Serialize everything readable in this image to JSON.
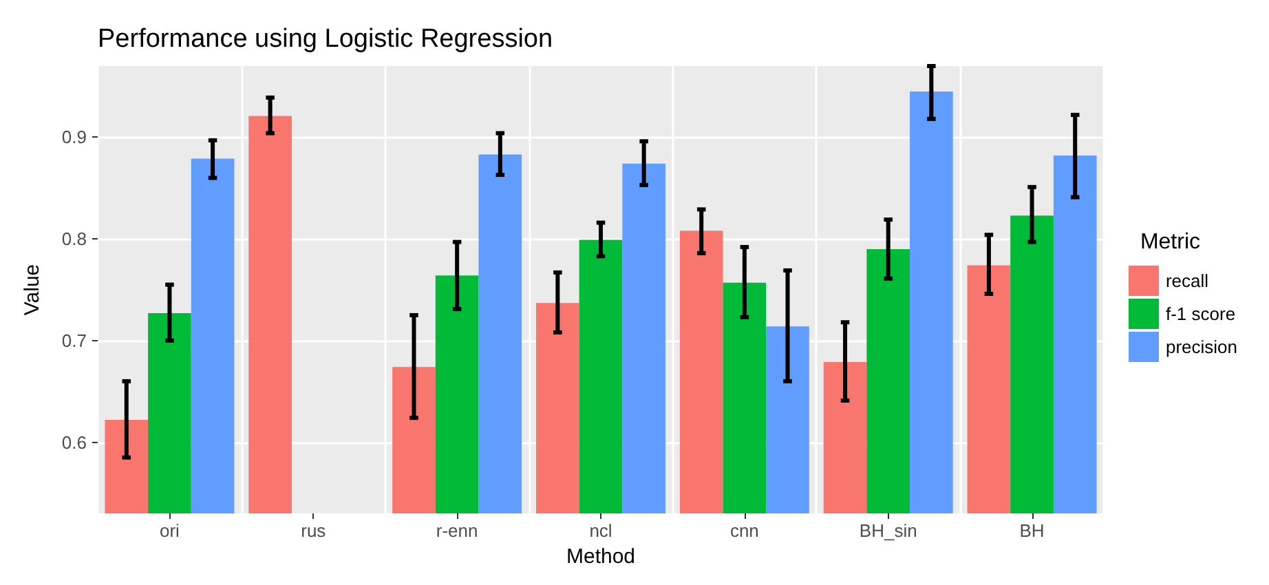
{
  "chart_data": {
    "type": "bar",
    "title": "Performance using Logistic Regression",
    "xlabel": "Method",
    "ylabel": "Value",
    "legend_title": "Metric",
    "categories": [
      "ori",
      "rus",
      "r-enn",
      "ncl",
      "cnn",
      "BH_sin",
      "BH"
    ],
    "series": [
      {
        "name": "recall",
        "color": "#f8766d",
        "values": [
          0.622,
          0.921,
          0.674,
          0.737,
          0.808,
          0.679,
          0.774
        ],
        "errors": [
          [
            0.585,
            0.66
          ],
          [
            0.904,
            0.939
          ],
          [
            0.624,
            0.725
          ],
          [
            0.708,
            0.767
          ],
          [
            0.786,
            0.829
          ],
          [
            0.641,
            0.718
          ],
          [
            0.746,
            0.804
          ]
        ]
      },
      {
        "name": "f-1 score",
        "color": "#00ba38",
        "values": [
          0.727,
          null,
          0.764,
          0.799,
          0.757,
          0.79,
          0.823
        ],
        "errors": [
          [
            0.7,
            0.755
          ],
          null,
          [
            0.731,
            0.797
          ],
          [
            0.783,
            0.816
          ],
          [
            0.723,
            0.792
          ],
          [
            0.761,
            0.819
          ],
          [
            0.797,
            0.851
          ]
        ]
      },
      {
        "name": "precision",
        "color": "#619cff",
        "values": [
          0.879,
          null,
          0.883,
          0.874,
          0.714,
          0.945,
          0.882
        ],
        "errors": [
          [
            0.86,
            0.897
          ],
          null,
          [
            0.863,
            0.904
          ],
          [
            0.853,
            0.896
          ],
          [
            0.66,
            0.769
          ],
          [
            0.918,
            0.97
          ],
          [
            0.841,
            0.922
          ]
        ]
      }
    ],
    "ylim": [
      0.53,
      0.97
    ],
    "yticks": [
      0.6,
      0.7,
      0.8,
      0.9
    ],
    "grid": true,
    "legend": "right"
  }
}
